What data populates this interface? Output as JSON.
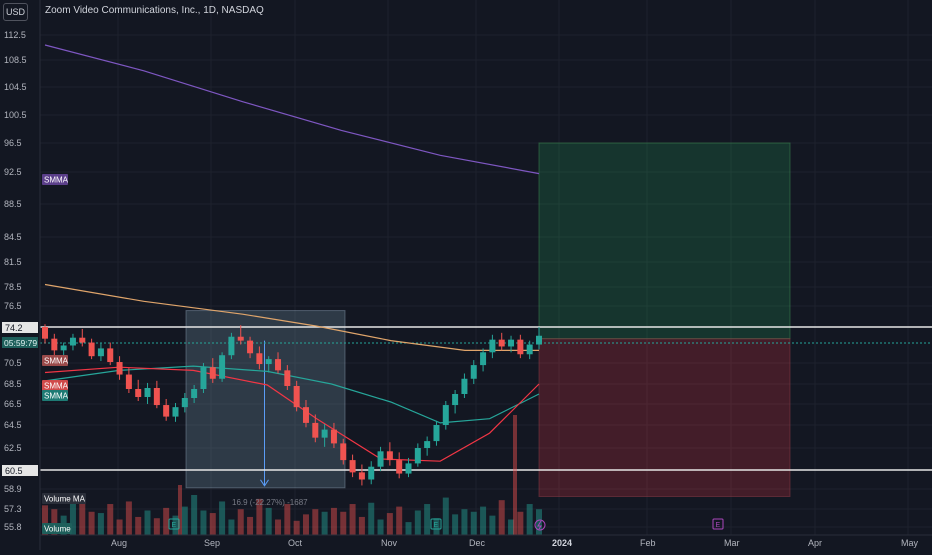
{
  "header": {
    "currency": "USD",
    "title": "Zoom Video Communications, Inc., 1D, NASDAQ"
  },
  "price_axis": {
    "ticks": [
      "112.5",
      "108.5",
      "104.5",
      "100.5",
      "96.5",
      "92.5",
      "88.5",
      "84.5",
      "81.5",
      "78.5",
      "76.5",
      "70.5",
      "68.5",
      "66.5",
      "64.5",
      "62.5",
      "58.9",
      "57.3",
      "55.8"
    ],
    "current_price_label": "74.2",
    "countdown_label": "05:59:79",
    "lower_level_label": "60.5"
  },
  "time_axis": {
    "labels": [
      "Aug",
      "Sep",
      "Oct",
      "Nov",
      "Dec",
      "2024",
      "Feb",
      "Mar",
      "Apr",
      "May"
    ]
  },
  "indicators": {
    "smma_label": "SMMA",
    "volume_ma_label": "Volume MA",
    "volume_label": "Volume",
    "measure_text": "16.9 (-22.27%) -1687"
  },
  "markers": {
    "earnings": "E"
  },
  "colors": {
    "background": "#131722",
    "up": "#26a69a",
    "down": "#ef5350",
    "smma200": "#7e57c2",
    "smma_orange": "#e0a56b",
    "smma_red": "#f23645",
    "smma_teal": "#26a69a",
    "grid": "#1e222d"
  },
  "chart_data": {
    "type": "candlestick",
    "y_range": [
      55.8,
      114.5
    ],
    "horizontal_levels": [
      74.2,
      60.5
    ],
    "candles": [
      [
        74.2,
        74.5,
        72.5,
        73.0
      ],
      [
        73.0,
        73.5,
        71.3,
        71.8
      ],
      [
        71.8,
        72.6,
        70.8,
        72.3
      ],
      [
        72.3,
        73.5,
        71.8,
        73.1
      ],
      [
        73.1,
        74.0,
        72.2,
        72.6
      ],
      [
        72.6,
        73.0,
        70.9,
        71.2
      ],
      [
        71.2,
        72.5,
        70.7,
        72.0
      ],
      [
        72.0,
        72.6,
        70.3,
        70.6
      ],
      [
        70.6,
        71.2,
        68.9,
        69.4
      ],
      [
        69.4,
        70.0,
        67.6,
        68.0
      ],
      [
        68.0,
        68.9,
        66.8,
        67.2
      ],
      [
        67.2,
        68.6,
        66.5,
        68.1
      ],
      [
        68.1,
        68.8,
        66.1,
        66.4
      ],
      [
        66.4,
        67.0,
        64.9,
        65.3
      ],
      [
        65.3,
        66.6,
        64.8,
        66.2
      ],
      [
        66.2,
        67.6,
        65.7,
        67.1
      ],
      [
        67.1,
        68.4,
        66.6,
        68.0
      ],
      [
        68.0,
        70.5,
        67.6,
        70.1
      ],
      [
        70.1,
        71.0,
        68.6,
        69.0
      ],
      [
        69.0,
        71.6,
        68.7,
        71.3
      ],
      [
        71.3,
        73.6,
        70.9,
        73.2
      ],
      [
        73.2,
        74.4,
        72.4,
        72.8
      ],
      [
        72.8,
        73.2,
        71.0,
        71.5
      ],
      [
        71.5,
        72.2,
        69.9,
        70.4
      ],
      [
        70.4,
        71.2,
        69.6,
        70.9
      ],
      [
        70.9,
        71.6,
        69.5,
        69.8
      ],
      [
        69.8,
        70.3,
        67.9,
        68.3
      ],
      [
        68.3,
        68.8,
        65.8,
        66.2
      ],
      [
        66.2,
        66.9,
        64.3,
        64.7
      ],
      [
        64.7,
        65.5,
        63.0,
        63.4
      ],
      [
        63.4,
        64.6,
        62.6,
        64.1
      ],
      [
        64.1,
        64.7,
        62.5,
        62.9
      ],
      [
        62.9,
        63.3,
        61.0,
        61.4
      ],
      [
        61.4,
        61.9,
        59.9,
        60.3
      ],
      [
        60.3,
        61.0,
        59.2,
        59.7
      ],
      [
        59.7,
        61.3,
        59.3,
        60.8
      ],
      [
        60.8,
        62.6,
        60.4,
        62.2
      ],
      [
        62.2,
        63.0,
        60.9,
        61.4
      ],
      [
        61.4,
        62.1,
        59.8,
        60.2
      ],
      [
        60.2,
        61.6,
        59.9,
        61.1
      ],
      [
        61.1,
        62.9,
        60.8,
        62.5
      ],
      [
        62.5,
        63.5,
        61.8,
        63.1
      ],
      [
        63.1,
        64.9,
        62.7,
        64.5
      ],
      [
        64.5,
        66.8,
        64.1,
        66.4
      ],
      [
        66.4,
        67.9,
        65.6,
        67.5
      ],
      [
        67.5,
        69.5,
        67.1,
        69.0
      ],
      [
        69.0,
        70.8,
        68.5,
        70.3
      ],
      [
        70.3,
        72.0,
        69.7,
        71.6
      ],
      [
        71.6,
        73.4,
        71.0,
        72.9
      ],
      [
        72.9,
        73.6,
        71.8,
        72.2
      ],
      [
        72.2,
        73.3,
        71.6,
        72.9
      ],
      [
        72.9,
        73.4,
        71.0,
        71.4
      ],
      [
        71.4,
        72.8,
        70.9,
        72.4
      ],
      [
        72.4,
        74.2,
        71.9,
        73.3
      ]
    ],
    "volumes": [
      23,
      20,
      15,
      26,
      31,
      18,
      17,
      24,
      12,
      26,
      14,
      19,
      13,
      21,
      15,
      22,
      31,
      19,
      17,
      26,
      12,
      20,
      14,
      28,
      21,
      12,
      24,
      11,
      16,
      20,
      18,
      21,
      18,
      24,
      14,
      25,
      12,
      17,
      22,
      10,
      19,
      24,
      13,
      29,
      16,
      20,
      18,
      22,
      15,
      27,
      12,
      18,
      24,
      20
    ],
    "smma200": [
      [
        0.0,
        110.9
      ],
      [
        0.2,
        106.9
      ],
      [
        0.4,
        102.4
      ],
      [
        0.6,
        98.3
      ],
      [
        0.8,
        94.8
      ],
      [
        1.0,
        92.3
      ]
    ],
    "smma_orange": [
      [
        0.0,
        78.8
      ],
      [
        0.2,
        77.0
      ],
      [
        0.4,
        75.6
      ],
      [
        0.55,
        74.3
      ],
      [
        0.7,
        72.8
      ],
      [
        0.85,
        71.8
      ],
      [
        1.0,
        71.8
      ]
    ],
    "smma_red": [
      [
        0.0,
        69.6
      ],
      [
        0.15,
        70.1
      ],
      [
        0.3,
        69.8
      ],
      [
        0.45,
        68.4
      ],
      [
        0.55,
        65.1
      ],
      [
        0.68,
        61.5
      ],
      [
        0.8,
        61.3
      ],
      [
        0.9,
        63.8
      ],
      [
        1.0,
        68.5
      ]
    ],
    "smma_teal": [
      [
        0.0,
        68.8
      ],
      [
        0.15,
        69.8
      ],
      [
        0.3,
        70.2
      ],
      [
        0.45,
        69.7
      ],
      [
        0.58,
        68.5
      ],
      [
        0.7,
        66.7
      ],
      [
        0.8,
        64.7
      ],
      [
        0.9,
        65.1
      ],
      [
        1.0,
        67.5
      ]
    ],
    "position_tool": {
      "profit_top": 96.5,
      "entry": 73.0,
      "stop": 58.3
    },
    "measure_box": {
      "top": 76.0,
      "bottom": 59.0,
      "start_index": 16,
      "end_index": 33
    }
  }
}
